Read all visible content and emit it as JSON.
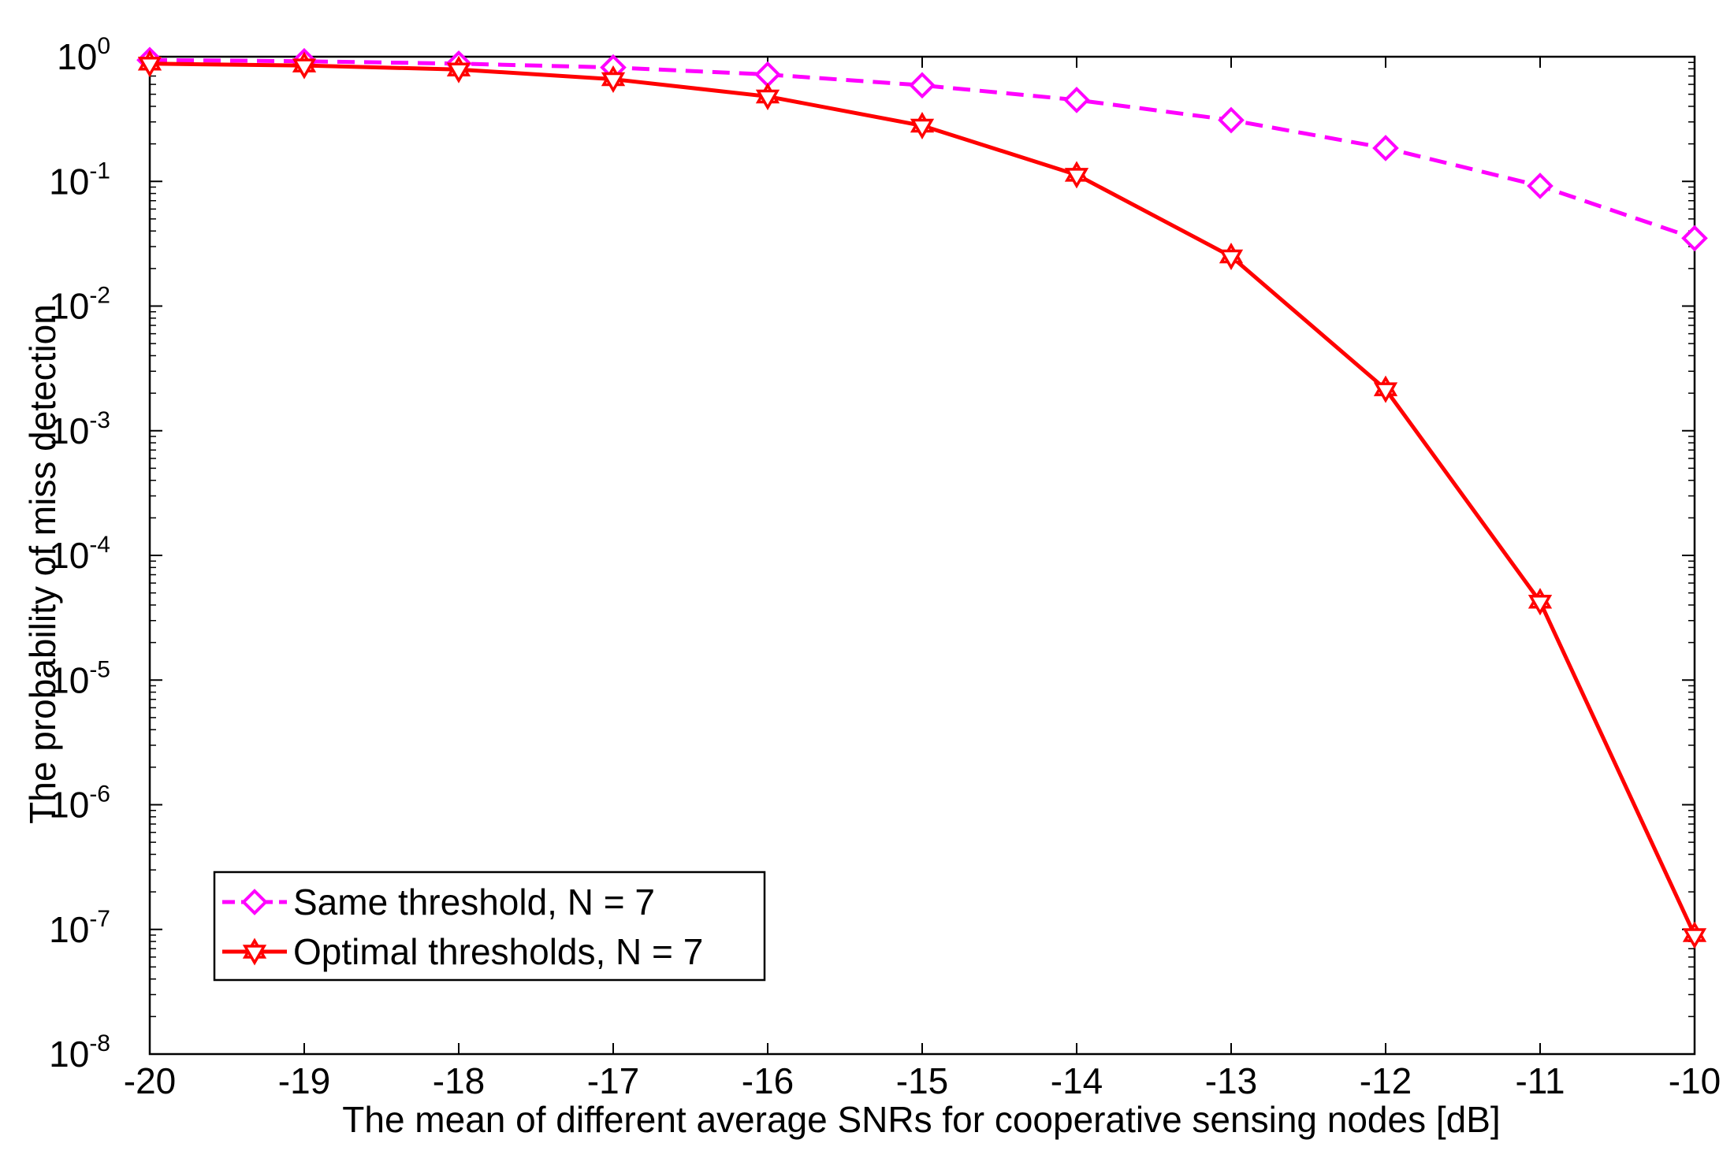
{
  "chart_data": {
    "type": "line",
    "title": "",
    "xlabel": "The mean of different average SNRs for cooperative sensing nodes [dB]",
    "ylabel": "The probability of miss detection",
    "xlim": [
      -20,
      -10
    ],
    "ylim_log10": [
      -8,
      0
    ],
    "yscale": "log",
    "x": [
      -20,
      -19,
      -18,
      -17,
      -16,
      -15,
      -14,
      -13,
      -12,
      -11,
      -10
    ],
    "x_tick_labels": [
      "-20",
      "-19",
      "-18",
      "-17",
      "-16",
      "-15",
      "-14",
      "-13",
      "-12",
      "-11",
      "-10"
    ],
    "y_ticks": [
      {
        "base": "10",
        "exp": "0"
      },
      {
        "base": "10",
        "exp": "-1"
      },
      {
        "base": "10",
        "exp": "-2"
      },
      {
        "base": "10",
        "exp": "-3"
      },
      {
        "base": "10",
        "exp": "-4"
      },
      {
        "base": "10",
        "exp": "-5"
      },
      {
        "base": "10",
        "exp": "-6"
      },
      {
        "base": "10",
        "exp": "-7"
      },
      {
        "base": "10",
        "exp": "-8"
      }
    ],
    "grid": false,
    "legend_position": "bottom-left",
    "series": [
      {
        "name": "Same threshold, N = 7",
        "color": "#ff00ff",
        "line_style": "dashed",
        "marker": "diamond",
        "values": [
          0.94,
          0.92,
          0.88,
          0.82,
          0.72,
          0.59,
          0.45,
          0.31,
          0.185,
          0.092,
          0.035
        ]
      },
      {
        "name": "Optimal thresholds, N = 7",
        "color": "#ff0000",
        "line_style": "solid",
        "marker": "hexagram",
        "values": [
          0.88,
          0.85,
          0.79,
          0.66,
          0.48,
          0.28,
          0.113,
          0.025,
          0.00215,
          4.25e-05,
          9e-08
        ]
      }
    ]
  }
}
